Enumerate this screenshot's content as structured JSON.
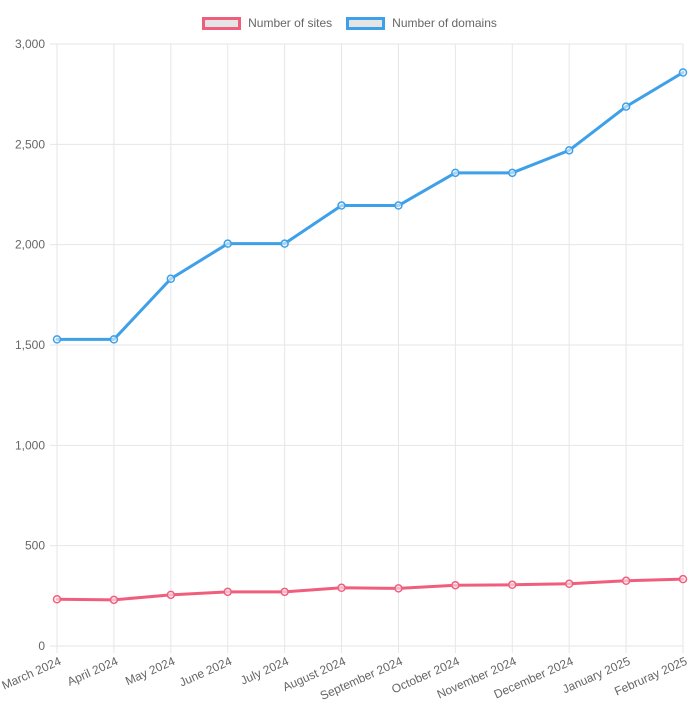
{
  "legend": {
    "position": "top",
    "items": [
      {
        "label": "Number of sites"
      },
      {
        "label": "Number of domains"
      }
    ]
  },
  "chart_data": {
    "type": "line",
    "title": "",
    "xlabel": "",
    "ylabel": "",
    "categories": [
      "March 2024",
      "April 2024",
      "May 2024",
      "June 2024",
      "July 2024",
      "August 2024",
      "September 2024",
      "October 2024",
      "November 2024",
      "December 2024",
      "January 2025",
      "Februray 2025"
    ],
    "series": [
      {
        "name": "Number of sites",
        "color": "#ef5f7d",
        "values": [
          233,
          230,
          255,
          270,
          270,
          290,
          287,
          303,
          305,
          310,
          325,
          333
        ]
      },
      {
        "name": "Number of domains",
        "color": "#3da0e8",
        "values": [
          1528,
          1528,
          1830,
          2005,
          2005,
          2195,
          2195,
          2358,
          2358,
          2470,
          2688,
          2858
        ]
      }
    ],
    "ylim": [
      0,
      3000
    ],
    "ytick_step": 500,
    "ytick_labels": [
      "0",
      "500",
      "1,000",
      "1,500",
      "2,000",
      "2,500",
      "3,000"
    ],
    "grid": true,
    "legend_position": "top",
    "x_label_rotation_deg": -24
  },
  "colors": {
    "grid": "#e6e6e6",
    "tick_text": "#666666",
    "legend_fill": "#e5e5e5",
    "background": "#ffffff",
    "point_fill": "#ffffff"
  }
}
